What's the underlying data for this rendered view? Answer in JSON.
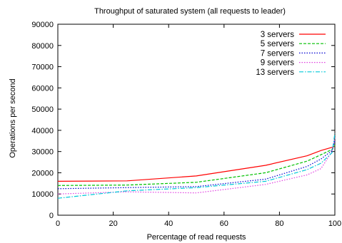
{
  "chart_data": {
    "type": "line",
    "title": "Throughput of saturated system (all requests to leader)",
    "xlabel": "Percentage of read requests",
    "ylabel": "Operations per second",
    "xlim": [
      0,
      100
    ],
    "ylim": [
      0,
      90000
    ],
    "xticks": [
      0,
      20,
      40,
      60,
      80,
      100
    ],
    "yticks": [
      0,
      10000,
      20000,
      30000,
      40000,
      50000,
      60000,
      70000,
      80000,
      90000
    ],
    "grid": false,
    "legend_position": "top-right",
    "series": [
      {
        "name": "3 servers",
        "color": "#ff0000",
        "dash": "solid",
        "x": [
          0,
          25,
          50,
          75,
          90,
          95,
          99,
          100
        ],
        "y": [
          16000,
          16200,
          18500,
          23500,
          28000,
          30500,
          32000,
          32500
        ]
      },
      {
        "name": "5 servers",
        "color": "#00c000",
        "dash": "dashed",
        "x": [
          0,
          25,
          50,
          75,
          90,
          95,
          99,
          100
        ],
        "y": [
          14000,
          14200,
          15500,
          20000,
          25500,
          28500,
          31000,
          33000
        ]
      },
      {
        "name": "7 servers",
        "color": "#0000d0",
        "dash": "dotted",
        "x": [
          0,
          25,
          50,
          75,
          90,
          95,
          99,
          100
        ],
        "y": [
          12500,
          13000,
          13500,
          17000,
          23000,
          26500,
          30500,
          35000
        ]
      },
      {
        "name": "9 servers",
        "color": "#e040e0",
        "dash": "dotted",
        "x": [
          0,
          25,
          50,
          75,
          90,
          95,
          99,
          100
        ],
        "y": [
          10000,
          11000,
          10500,
          14500,
          19000,
          22000,
          30000,
          36500
        ]
      },
      {
        "name": "13 servers",
        "color": "#00c8d8",
        "dash": "dashdot",
        "x": [
          0,
          25,
          50,
          75,
          90,
          95,
          99,
          100
        ],
        "y": [
          8000,
          11500,
          13000,
          16000,
          21500,
          24500,
          29500,
          38500
        ]
      }
    ]
  }
}
